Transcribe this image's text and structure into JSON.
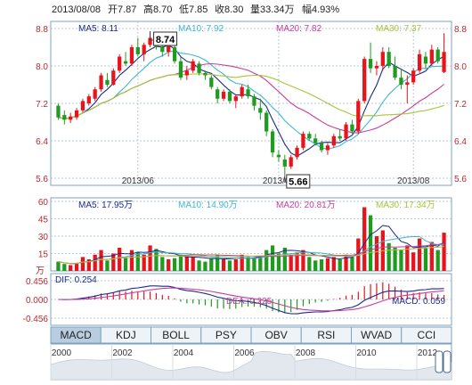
{
  "header": {
    "date": "2013/08/08",
    "open_label": "开",
    "open": "7.87",
    "high_label": "高",
    "high": "8.70",
    "low_label": "低",
    "low": "7.85",
    "close_label": "收",
    "close": "8.30",
    "vol_label": "量",
    "vol": "33.34万",
    "chg_label": "幅",
    "chg": "4.93%"
  },
  "price_panel": {
    "ma_legend": [
      {
        "label": "MA5: 8.11",
        "color": "#1a2a8a"
      },
      {
        "label": "MA10: 7.92",
        "color": "#3fb7d1"
      },
      {
        "label": "MA20: 7.82",
        "color": "#c63ea0"
      },
      {
        "label": "MA30: 7.37",
        "color": "#a8c43a"
      }
    ],
    "y_ticks": [
      "8.8",
      "8.0",
      "7.2",
      "6.4",
      "5.6"
    ],
    "x_ticks": [
      "2013/06",
      "2013/07",
      "2013/08"
    ],
    "high_callout": "8.74",
    "low_callout": "5.66"
  },
  "volume_panel": {
    "ma_legend": [
      {
        "label": "MA5: 17.95万",
        "color": "#1a2a8a"
      },
      {
        "label": "MA10: 14.90万",
        "color": "#3fb7d1"
      },
      {
        "label": "MA20: 20.81万",
        "color": "#c63ea0"
      },
      {
        "label": "MA30: 17.34万",
        "color": "#a8c43a"
      }
    ],
    "y_ticks": [
      "60",
      "45",
      "30",
      "15"
    ],
    "unit": "万"
  },
  "macd_panel": {
    "dif_label": "DIF: 0.254",
    "dea_label": "DEA: 0.225",
    "macd_label": "MACD: 0.059",
    "y_ticks": [
      "0.456",
      "0.000",
      "-0.456"
    ]
  },
  "tabs": [
    "MACD",
    "KDJ",
    "BOLL",
    "PSY",
    "OBV",
    "RSI",
    "WVAD",
    "CCI"
  ],
  "active_tab": "MACD",
  "timeline_ticks": [
    "2000",
    "2002",
    "2004",
    "2006",
    "2008",
    "2010",
    "2012"
  ],
  "colors": {
    "up": "#e8141b",
    "down": "#1f9b1f",
    "grid": "#b4c8d8",
    "frame": "#7fa2be"
  },
  "chart_data": {
    "type": "candlestick",
    "ylim": [
      5.6,
      8.8
    ],
    "candles": [
      [
        7.15,
        7.2,
        6.85,
        6.9
      ],
      [
        6.95,
        7.05,
        6.75,
        6.85
      ],
      [
        6.85,
        7.0,
        6.78,
        6.92
      ],
      [
        6.9,
        7.1,
        6.85,
        7.05
      ],
      [
        7.05,
        7.3,
        7.0,
        7.25
      ],
      [
        7.2,
        7.4,
        7.15,
        7.35
      ],
      [
        7.3,
        7.55,
        7.25,
        7.5
      ],
      [
        7.5,
        7.85,
        7.45,
        7.8
      ],
      [
        7.7,
        7.85,
        7.55,
        7.6
      ],
      [
        7.6,
        7.95,
        7.58,
        7.9
      ],
      [
        7.9,
        8.25,
        7.85,
        8.2
      ],
      [
        8.1,
        8.3,
        8.0,
        8.05
      ],
      [
        8.05,
        8.45,
        8.0,
        8.4
      ],
      [
        8.4,
        8.6,
        8.2,
        8.25
      ],
      [
        8.25,
        8.5,
        8.1,
        8.45
      ],
      [
        8.45,
        8.74,
        8.4,
        8.6
      ],
      [
        8.55,
        8.7,
        8.35,
        8.4
      ],
      [
        8.4,
        8.55,
        8.2,
        8.3
      ],
      [
        8.3,
        8.5,
        8.2,
        8.45
      ],
      [
        8.4,
        8.45,
        8.05,
        8.1
      ],
      [
        8.1,
        8.2,
        7.7,
        7.75
      ],
      [
        7.8,
        8.0,
        7.7,
        7.9
      ],
      [
        7.9,
        8.15,
        7.85,
        8.1
      ],
      [
        8.05,
        8.1,
        7.8,
        7.85
      ],
      [
        7.85,
        7.9,
        7.7,
        7.8
      ],
      [
        7.75,
        7.8,
        7.5,
        7.55
      ],
      [
        7.5,
        7.55,
        7.2,
        7.3
      ],
      [
        7.3,
        7.5,
        7.25,
        7.45
      ],
      [
        7.45,
        7.5,
        7.2,
        7.25
      ],
      [
        7.25,
        7.4,
        7.1,
        7.35
      ],
      [
        7.35,
        7.6,
        7.3,
        7.55
      ],
      [
        7.5,
        7.6,
        7.3,
        7.35
      ],
      [
        7.35,
        7.4,
        7.05,
        7.15
      ],
      [
        7.1,
        7.3,
        6.85,
        7.0
      ],
      [
        7.0,
        7.05,
        6.5,
        6.6
      ],
      [
        6.6,
        6.65,
        6.05,
        6.15
      ],
      [
        6.1,
        6.2,
        5.95,
        6.05
      ],
      [
        6.0,
        6.1,
        5.66,
        5.85
      ],
      [
        5.85,
        6.1,
        5.8,
        6.05
      ],
      [
        6.05,
        6.3,
        6.0,
        6.25
      ],
      [
        6.25,
        6.6,
        6.2,
        6.55
      ],
      [
        6.55,
        6.6,
        6.4,
        6.45
      ],
      [
        6.45,
        6.55,
        6.3,
        6.35
      ],
      [
        6.35,
        6.4,
        6.15,
        6.2
      ],
      [
        6.2,
        6.35,
        6.1,
        6.3
      ],
      [
        6.3,
        6.55,
        6.25,
        6.5
      ],
      [
        6.5,
        6.65,
        6.4,
        6.45
      ],
      [
        6.45,
        6.8,
        6.4,
        6.75
      ],
      [
        6.75,
        6.85,
        6.55,
        6.6
      ],
      [
        6.6,
        7.3,
        6.55,
        7.25
      ],
      [
        7.25,
        8.2,
        7.2,
        8.15
      ],
      [
        8.15,
        8.5,
        7.85,
        7.95
      ],
      [
        7.95,
        8.1,
        7.8,
        8.0
      ],
      [
        8.0,
        8.4,
        7.9,
        8.3
      ],
      [
        8.3,
        8.4,
        7.95,
        8.0
      ],
      [
        8.0,
        8.2,
        7.7,
        7.75
      ],
      [
        7.75,
        7.95,
        7.5,
        7.6
      ],
      [
        7.6,
        7.8,
        7.2,
        7.65
      ],
      [
        7.65,
        7.95,
        7.6,
        7.9
      ],
      [
        7.9,
        8.35,
        7.85,
        8.25
      ],
      [
        8.2,
        8.3,
        7.95,
        8.05
      ],
      [
        8.05,
        8.45,
        8.0,
        8.35
      ],
      [
        8.35,
        8.4,
        8.05,
        8.1
      ],
      [
        7.87,
        8.7,
        7.85,
        8.3
      ]
    ],
    "volume": [
      8,
      6,
      5,
      7,
      12,
      10,
      14,
      18,
      9,
      15,
      20,
      12,
      18,
      16,
      14,
      22,
      19,
      12,
      10,
      11,
      14,
      13,
      12,
      9,
      8,
      11,
      14,
      10,
      9,
      10,
      14,
      12,
      11,
      13,
      18,
      22,
      15,
      20,
      14,
      16,
      18,
      12,
      9,
      10,
      11,
      12,
      10,
      14,
      12,
      28,
      55,
      48,
      30,
      35,
      24,
      20,
      18,
      22,
      16,
      28,
      20,
      25,
      18,
      33
    ],
    "ma_series": [
      "MA5",
      "MA10",
      "MA20",
      "MA30"
    ],
    "macd_ylim": [
      -0.456,
      0.456
    ]
  }
}
